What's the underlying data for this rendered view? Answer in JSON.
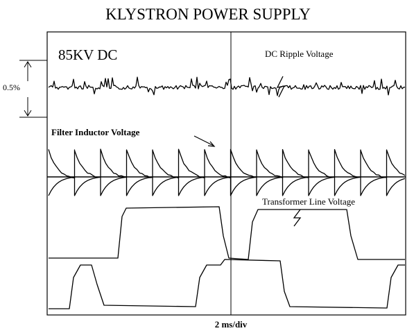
{
  "title": "KLYSTRON POWER SUPPLY",
  "labels": {
    "voltage": "85KV DC",
    "ripple": "DC Ripple Voltage",
    "scale": "0.5%",
    "filter": "Filter Inductor Voltage",
    "transformer": "Transformer Line Voltage",
    "timebase": "2 ms/div"
  }
}
